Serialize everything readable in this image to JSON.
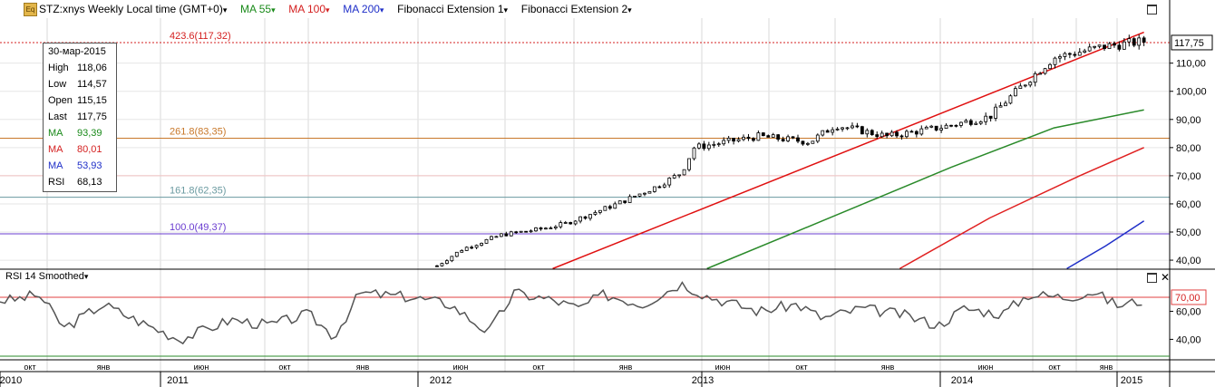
{
  "header": {
    "title": "STZ:xnys Weekly Local time (GMT+0)",
    "ma55": "MA 55",
    "ma100": "MA 100",
    "ma200": "MA 200",
    "fib1": "Fibonacci Extension 1",
    "fib2": "Fibonacci Extension 2",
    "icon": "Eq",
    "dropdown_glyph": "▾"
  },
  "ohlc_panel": {
    "date": "30-мар-2015",
    "rows": [
      {
        "k": "High",
        "v": "118,06",
        "color": "#000000"
      },
      {
        "k": "Low",
        "v": "114,57",
        "color": "#000000"
      },
      {
        "k": "Open",
        "v": "115,15",
        "color": "#000000"
      },
      {
        "k": "Last",
        "v": "117,75",
        "color": "#000000"
      },
      {
        "k": "MA",
        "v": "93,39",
        "color": "#1a8a1a"
      },
      {
        "k": "MA",
        "v": "80,01",
        "color": "#d42020"
      },
      {
        "k": "MA",
        "v": "53,93",
        "color": "#1f2fc8"
      },
      {
        "k": "RSI",
        "v": "68,13",
        "color": "#000000"
      }
    ]
  },
  "rsi_panel": {
    "title": "RSI 14 Smoothed",
    "level_label": "70,00",
    "ticks": [
      "60,00",
      "40,00"
    ]
  },
  "colors": {
    "up_candle": "#ffffff",
    "down_candle": "#000000",
    "ma55": "#2a8a2a",
    "ma100": "#e02020",
    "ma200": "#1f2fc8",
    "fib_423": "#d42020",
    "fib_261": "#c8782a",
    "fib_161": "#6a9aa0",
    "fib_100": "#6a3cd0",
    "channel": "#e01010",
    "rsi_line": "#555555"
  },
  "chart_data": {
    "type": "candlestick",
    "symbol": "STZ:xnys",
    "interval": "Weekly",
    "last_price_label": "117,75",
    "y_axis_ticks": [
      "110,00",
      "100,00",
      "90,00",
      "80,00",
      "70,00",
      "60,00",
      "50,00",
      "40,00"
    ],
    "ylim": [
      36.8,
      126
    ],
    "fib_levels": [
      {
        "label": "423.6(117,32)",
        "value": 117.32
      },
      {
        "label": "261.8(83,35)",
        "value": 83.35
      },
      {
        "label": "161.8(62,35)",
        "value": 62.35
      },
      {
        "label": "100.0(49,37)",
        "value": 49.37
      }
    ],
    "time_axis_months": [
      "окт",
      "янв",
      "июн",
      "окт",
      "янв",
      "июн",
      "окт",
      "янв",
      "июн",
      "окт",
      "янв",
      "июн",
      "окт",
      "янв"
    ],
    "time_axis_years": [
      "2010",
      "2011",
      "2012",
      "2013",
      "2014",
      "2015"
    ],
    "candle_keyframes": [
      [
        2012.5,
        38
      ],
      [
        2012.6,
        44
      ],
      [
        2012.75,
        49
      ],
      [
        2012.9,
        51
      ],
      [
        2013.0,
        53
      ],
      [
        2013.2,
        60
      ],
      [
        2013.35,
        66
      ],
      [
        2013.45,
        71
      ],
      [
        2013.5,
        80
      ],
      [
        2013.75,
        84
      ],
      [
        2013.95,
        82
      ],
      [
        2014.05,
        88
      ],
      [
        2014.25,
        84
      ],
      [
        2014.45,
        87
      ],
      [
        2014.65,
        91
      ],
      [
        2014.8,
        104
      ],
      [
        2014.9,
        112
      ],
      [
        2015.1,
        116
      ],
      [
        2015.25,
        117.75
      ]
    ],
    "ma55": [
      [
        2013.55,
        37
      ],
      [
        2014.0,
        54
      ],
      [
        2014.5,
        73
      ],
      [
        2014.9,
        87
      ],
      [
        2015.25,
        93.39
      ]
    ],
    "ma100": [
      [
        2014.3,
        37
      ],
      [
        2014.65,
        55
      ],
      [
        2015.0,
        70
      ],
      [
        2015.25,
        80.01
      ]
    ],
    "ma200": [
      [
        2014.95,
        37
      ],
      [
        2015.1,
        45
      ],
      [
        2015.25,
        53.93
      ]
    ],
    "channel": [
      [
        2012.95,
        37
      ],
      [
        2015.25,
        121
      ]
    ],
    "rsi": [
      [
        2010.85,
        68
      ],
      [
        2010.95,
        72
      ],
      [
        2011.05,
        48
      ],
      [
        2011.2,
        65
      ],
      [
        2011.35,
        52
      ],
      [
        2011.5,
        40
      ],
      [
        2011.7,
        54
      ],
      [
        2011.85,
        50
      ],
      [
        2012.0,
        58
      ],
      [
        2012.1,
        42
      ],
      [
        2012.2,
        73
      ],
      [
        2012.4,
        70
      ],
      [
        2012.55,
        65
      ],
      [
        2012.7,
        45
      ],
      [
        2012.8,
        73
      ],
      [
        2012.95,
        68
      ],
      [
        2013.05,
        62
      ],
      [
        2013.15,
        72
      ],
      [
        2013.3,
        65
      ],
      [
        2013.45,
        80
      ],
      [
        2013.55,
        71
      ],
      [
        2013.75,
        60
      ],
      [
        2013.9,
        65
      ],
      [
        2014.0,
        55
      ],
      [
        2014.15,
        62
      ],
      [
        2014.3,
        58
      ],
      [
        2014.45,
        50
      ],
      [
        2014.55,
        62
      ],
      [
        2014.7,
        58
      ],
      [
        2014.8,
        72
      ],
      [
        2014.95,
        70
      ],
      [
        2015.05,
        74
      ],
      [
        2015.15,
        64
      ],
      [
        2015.25,
        68.13
      ]
    ],
    "rsi_ylim": [
      28,
      90
    ],
    "xlim": [
      2010.8,
      2015.35
    ]
  }
}
